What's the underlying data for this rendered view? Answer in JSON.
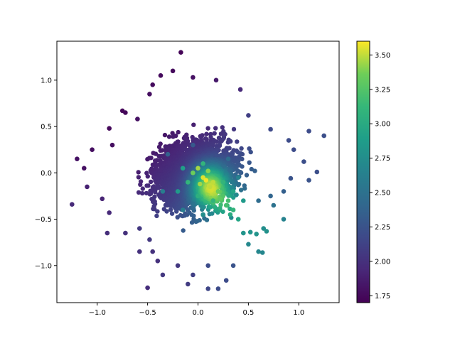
{
  "chart_data": {
    "type": "scatter",
    "title": "",
    "xlabel": "",
    "ylabel": "",
    "xlim": [
      -1.4,
      1.4
    ],
    "ylim": [
      -1.4,
      1.42
    ],
    "xticks": [
      -1.0,
      -0.5,
      0.0,
      0.5,
      1.0
    ],
    "xtick_labels": [
      "−1.0",
      "−0.5",
      "0.0",
      "0.5",
      "1.0"
    ],
    "yticks": [
      -1.0,
      -0.5,
      0.0,
      0.5,
      1.0
    ],
    "ytick_labels": [
      "−1.0",
      "−0.5",
      "0.0",
      "0.5",
      "1.0"
    ],
    "grid": false,
    "colormap": "viridis",
    "colorbar": {
      "range": [
        1.7,
        3.6
      ],
      "ticks": [
        1.75,
        2.0,
        2.25,
        2.5,
        2.75,
        3.0,
        3.25,
        3.5
      ],
      "tick_labels": [
        "1.75",
        "2.00",
        "2.25",
        "2.50",
        "2.75",
        "3.00",
        "3.25",
        "3.50"
      ]
    },
    "points": [
      [
        -0.17,
        1.3,
        1.72
      ],
      [
        -0.25,
        1.1,
        1.75
      ],
      [
        -0.37,
        1.05,
        1.76
      ],
      [
        -0.05,
        1.03,
        1.8
      ],
      [
        0.18,
        1.0,
        1.85
      ],
      [
        -0.45,
        0.95,
        1.76
      ],
      [
        -0.48,
        0.85,
        1.78
      ],
      [
        0.42,
        0.9,
        1.95
      ],
      [
        -0.75,
        0.67,
        1.73
      ],
      [
        -0.72,
        0.65,
        1.74
      ],
      [
        -0.88,
        0.48,
        1.74
      ],
      [
        0.5,
        0.62,
        2.1
      ],
      [
        -0.6,
        0.58,
        1.8
      ],
      [
        -0.85,
        0.3,
        1.78
      ],
      [
        0.72,
        0.47,
        2.18
      ],
      [
        0.9,
        0.35,
        2.2
      ],
      [
        1.1,
        0.45,
        2.2
      ],
      [
        1.25,
        0.4,
        2.22
      ],
      [
        0.95,
        0.25,
        2.2
      ],
      [
        1.05,
        0.12,
        2.22
      ],
      [
        -1.2,
        0.15,
        1.8
      ],
      [
        -1.05,
        0.25,
        1.78
      ],
      [
        -1.13,
        0.05,
        1.8
      ],
      [
        -1.1,
        -0.15,
        1.9
      ],
      [
        -0.95,
        -0.28,
        1.92
      ],
      [
        -0.88,
        -0.43,
        1.95
      ],
      [
        -1.25,
        -0.34,
        1.95
      ],
      [
        1.18,
        0.01,
        2.22
      ],
      [
        1.1,
        -0.08,
        2.25
      ],
      [
        0.92,
        -0.06,
        2.25
      ],
      [
        0.85,
        -0.2,
        2.35
      ],
      [
        0.72,
        -0.25,
        2.4
      ],
      [
        0.6,
        -0.3,
        2.45
      ],
      [
        0.75,
        -0.35,
        2.5
      ],
      [
        0.85,
        -0.5,
        2.65
      ],
      [
        0.65,
        -0.6,
        2.75
      ],
      [
        0.68,
        -0.63,
        2.78
      ],
      [
        0.58,
        -0.66,
        2.8
      ],
      [
        0.52,
        -0.64,
        2.8
      ],
      [
        0.45,
        -0.65,
        2.8
      ],
      [
        0.5,
        -0.77,
        2.7
      ],
      [
        0.6,
        -0.85,
        2.68
      ],
      [
        0.64,
        -0.86,
        2.68
      ],
      [
        -0.9,
        -0.65,
        1.98
      ],
      [
        -0.72,
        -0.65,
        2.0
      ],
      [
        -0.58,
        -0.6,
        2.05
      ],
      [
        -0.48,
        -0.72,
        2.05
      ],
      [
        -0.58,
        -0.85,
        2.0
      ],
      [
        -0.45,
        -0.85,
        2.0
      ],
      [
        -0.4,
        -0.95,
        2.0
      ],
      [
        -0.2,
        -1.0,
        2.05
      ],
      [
        0.1,
        -1.0,
        2.2
      ],
      [
        -0.35,
        -1.1,
        2.05
      ],
      [
        -0.5,
        -1.24,
        1.98
      ],
      [
        -0.05,
        -1.1,
        2.1
      ],
      [
        -0.1,
        -1.2,
        2.08
      ],
      [
        0.1,
        -1.25,
        2.15
      ],
      [
        0.2,
        -1.25,
        2.2
      ],
      [
        0.28,
        -1.16,
        2.2
      ],
      [
        0.35,
        -1.0,
        2.25
      ],
      [
        0.0,
        0.05,
        3.45
      ],
      [
        0.05,
        -0.05,
        3.55
      ],
      [
        0.08,
        -0.08,
        3.58
      ],
      [
        0.12,
        -0.15,
        3.5
      ],
      [
        0.15,
        -0.1,
        3.5
      ],
      [
        0.2,
        -0.2,
        3.35
      ],
      [
        0.25,
        -0.25,
        3.25
      ],
      [
        0.3,
        -0.3,
        3.2
      ],
      [
        0.35,
        -0.4,
        3.1
      ],
      [
        0.28,
        -0.35,
        3.2
      ],
      [
        0.22,
        -0.28,
        3.3
      ],
      [
        0.4,
        -0.5,
        2.95
      ],
      [
        0.32,
        -0.45,
        3.0
      ],
      [
        -0.05,
        0.0,
        3.35
      ],
      [
        0.02,
        -0.12,
        3.45
      ],
      [
        0.1,
        0.02,
        3.4
      ],
      [
        -0.1,
        -0.1,
        3.1
      ],
      [
        -0.15,
        0.05,
        2.9
      ],
      [
        0.05,
        0.1,
        3.1
      ],
      [
        -0.2,
        -0.2,
        2.85
      ],
      [
        0.15,
        -0.3,
        3.1
      ],
      [
        0.25,
        -0.1,
        3.1
      ],
      [
        0.0,
        -0.25,
        3.05
      ],
      [
        0.35,
        -0.2,
        2.95
      ],
      [
        -0.3,
        0.2,
        2.35
      ],
      [
        0.3,
        0.15,
        2.45
      ],
      [
        -0.05,
        0.3,
        2.3
      ],
      [
        -0.35,
        -0.2,
        2.6
      ],
      [
        0.4,
        -0.05,
        2.65
      ],
      [
        0.05,
        -0.45,
        2.75
      ],
      [
        -0.15,
        -0.4,
        2.6
      ],
      [
        0.45,
        -0.3,
        2.85
      ]
    ]
  }
}
